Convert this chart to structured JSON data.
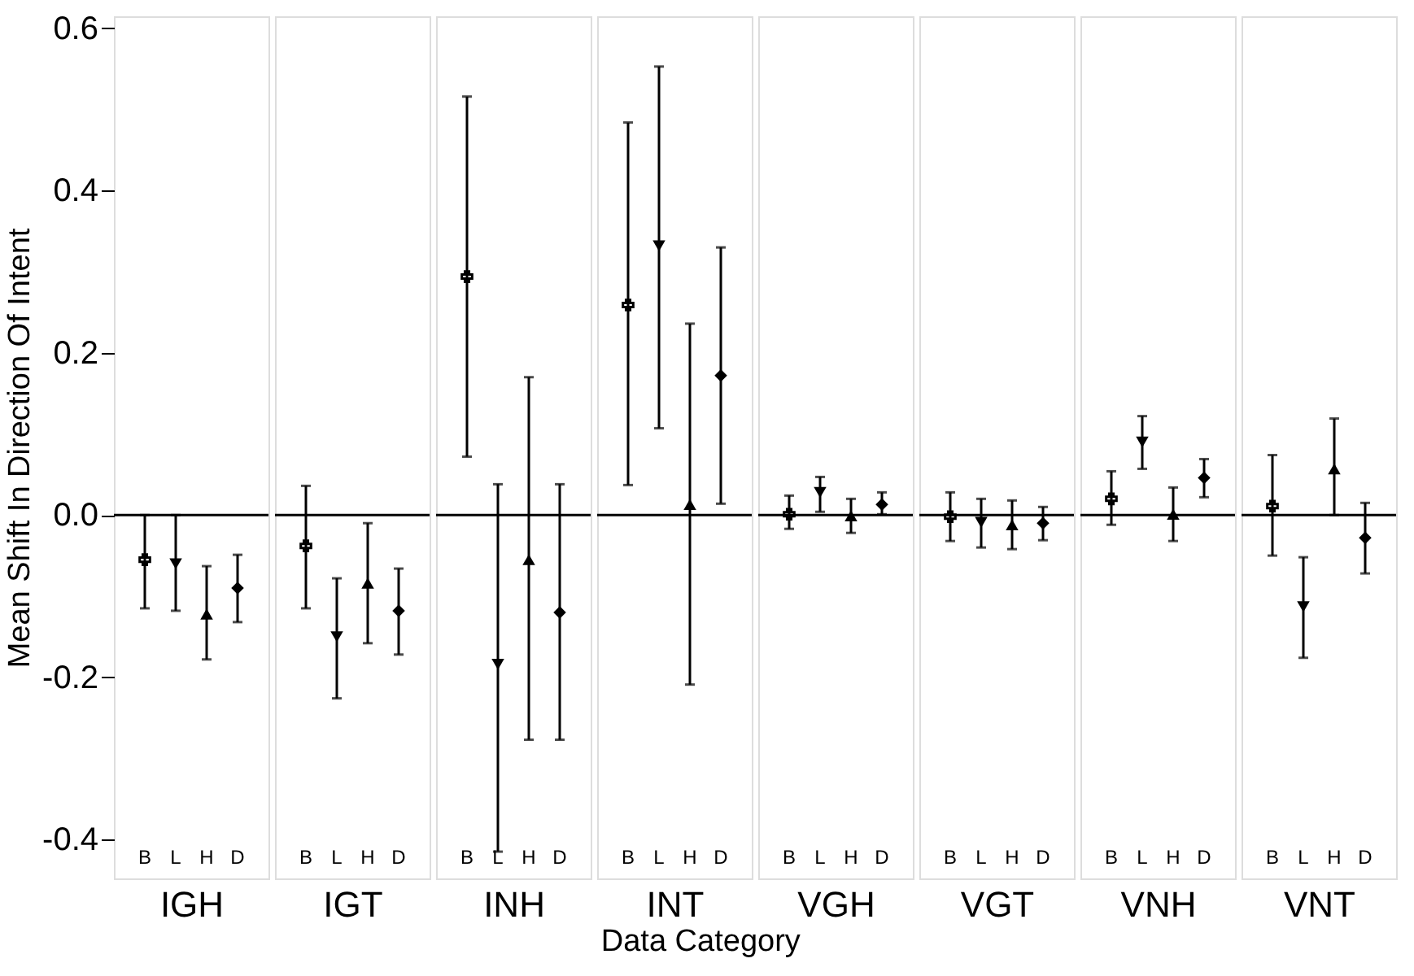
{
  "chart_data": [
    {
      "type": "scatter",
      "xlabel": "IGH",
      "ylabel": "Mean Shift In Direction Of Intent",
      "annotations": [
        "Data Category"
      ],
      "categories": [
        "B",
        "L",
        "H",
        "D"
      ],
      "ylim": [
        -0.448,
        0.615
      ],
      "yticks": [
        {
          "value": -0.4,
          "label": "-0.4"
        },
        {
          "value": -0.2,
          "label": "-0.2"
        },
        {
          "value": 0,
          "label": "0.0"
        },
        {
          "value": 0.2,
          "label": "0.2"
        },
        {
          "value": 0.4,
          "label": "0.4"
        },
        {
          "value": 0.6,
          "label": "0.6"
        }
      ],
      "ref_lines": [
        {
          "axis": "y",
          "value": 0
        }
      ],
      "series": [
        {
          "color": "#000000",
          "marker": "cross",
          "values": [
            -0.055,
            null,
            null,
            null
          ],
          "errors": [
            [
              -0.115,
              0.0
            ],
            null,
            null,
            null
          ]
        },
        {
          "color": "#000000",
          "marker": "triangle-down",
          "values": [
            null,
            -0.06,
            null,
            null
          ],
          "errors": [
            null,
            [
              -0.118,
              0.0
            ],
            null,
            null
          ]
        },
        {
          "color": "#000000",
          "marker": "triangle",
          "values": [
            null,
            null,
            -0.122,
            null
          ],
          "errors": [
            null,
            null,
            [
              -0.178,
              -0.063
            ],
            null
          ]
        },
        {
          "color": "#000000",
          "marker": "diamond",
          "values": [
            null,
            null,
            null,
            -0.09
          ],
          "errors": [
            null,
            null,
            null,
            [
              -0.132,
              -0.049
            ]
          ]
        }
      ]
    },
    {
      "type": "scatter",
      "xlabel": "IGT",
      "categories": [
        "B",
        "L",
        "H",
        "D"
      ],
      "ylim": [
        -0.448,
        0.615
      ],
      "tick_labels": "x",
      "ref_lines": [
        {
          "axis": "y",
          "value": 0
        }
      ],
      "series": [
        {
          "color": "#000000",
          "marker": "cross",
          "values": [
            -0.038,
            null,
            null,
            null
          ],
          "errors": [
            [
              -0.115,
              0.036
            ],
            null,
            null,
            null
          ]
        },
        {
          "color": "#000000",
          "marker": "triangle-down",
          "values": [
            null,
            -0.15,
            null,
            null
          ],
          "errors": [
            null,
            [
              -0.226,
              -0.078
            ],
            null,
            null
          ]
        },
        {
          "color": "#000000",
          "marker": "triangle",
          "values": [
            null,
            null,
            -0.084,
            null
          ],
          "errors": [
            null,
            null,
            [
              -0.158,
              -0.01
            ],
            null
          ]
        },
        {
          "color": "#000000",
          "marker": "diamond",
          "values": [
            null,
            null,
            null,
            -0.118
          ],
          "errors": [
            null,
            null,
            null,
            [
              -0.172,
              -0.066
            ]
          ]
        }
      ]
    },
    {
      "type": "scatter",
      "xlabel": "INH",
      "categories": [
        "B",
        "L",
        "H",
        "D"
      ],
      "ylim": [
        -0.448,
        0.615
      ],
      "tick_labels": "x",
      "ref_lines": [
        {
          "axis": "y",
          "value": 0
        }
      ],
      "series": [
        {
          "color": "#000000",
          "marker": "cross",
          "values": [
            0.294,
            null,
            null,
            null
          ],
          "errors": [
            [
              0.072,
              0.516
            ],
            null,
            null,
            null
          ]
        },
        {
          "color": "#000000",
          "marker": "triangle-down",
          "values": [
            null,
            -0.184,
            null,
            null
          ],
          "errors": [
            null,
            [
              -0.415,
              0.038
            ],
            null,
            null
          ]
        },
        {
          "color": "#000000",
          "marker": "triangle",
          "values": [
            null,
            null,
            -0.055,
            null
          ],
          "errors": [
            null,
            null,
            [
              -0.277,
              0.17
            ],
            null
          ]
        },
        {
          "color": "#000000",
          "marker": "diamond",
          "values": [
            null,
            null,
            null,
            -0.12
          ],
          "errors": [
            null,
            null,
            null,
            [
              -0.277,
              0.038
            ]
          ]
        }
      ]
    },
    {
      "type": "scatter",
      "xlabel": "INT",
      "categories": [
        "B",
        "L",
        "H",
        "D"
      ],
      "ylim": [
        -0.448,
        0.615
      ],
      "tick_labels": "x",
      "ref_lines": [
        {
          "axis": "y",
          "value": 0
        }
      ],
      "series": [
        {
          "color": "#000000",
          "marker": "cross",
          "values": [
            0.259,
            null,
            null,
            null
          ],
          "errors": [
            [
              0.037,
              0.484
            ],
            null,
            null,
            null
          ]
        },
        {
          "color": "#000000",
          "marker": "triangle-down",
          "values": [
            null,
            0.332,
            null,
            null
          ],
          "errors": [
            null,
            [
              0.107,
              0.553
            ],
            null,
            null
          ]
        },
        {
          "color": "#000000",
          "marker": "triangle",
          "values": [
            null,
            null,
            0.013,
            null
          ],
          "errors": [
            null,
            null,
            [
              -0.209,
              0.236
            ],
            null
          ]
        },
        {
          "color": "#000000",
          "marker": "diamond",
          "values": [
            null,
            null,
            null,
            0.172
          ],
          "errors": [
            null,
            null,
            null,
            [
              0.014,
              0.33
            ]
          ]
        }
      ]
    },
    {
      "type": "scatter",
      "xlabel": "VGH",
      "categories": [
        "B",
        "L",
        "H",
        "D"
      ],
      "ylim": [
        -0.448,
        0.615
      ],
      "tick_labels": "x",
      "ref_lines": [
        {
          "axis": "y",
          "value": 0
        }
      ],
      "series": [
        {
          "color": "#000000",
          "marker": "cross",
          "values": [
            0.001,
            null,
            null,
            null
          ],
          "errors": [
            [
              -0.017,
              0.024
            ],
            null,
            null,
            null
          ]
        },
        {
          "color": "#000000",
          "marker": "triangle-down",
          "values": [
            null,
            0.028,
            null,
            null
          ],
          "errors": [
            null,
            [
              0.004,
              0.047
            ],
            null,
            null
          ]
        },
        {
          "color": "#000000",
          "marker": "triangle",
          "values": [
            null,
            null,
            -0.001,
            null
          ],
          "errors": [
            null,
            null,
            [
              -0.022,
              0.02
            ],
            null
          ]
        },
        {
          "color": "#000000",
          "marker": "diamond",
          "values": [
            null,
            null,
            null,
            0.013
          ],
          "errors": [
            null,
            null,
            null,
            [
              0.001,
              0.028
            ]
          ]
        }
      ]
    },
    {
      "type": "scatter",
      "xlabel": "VGT",
      "categories": [
        "B",
        "L",
        "H",
        "D"
      ],
      "ylim": [
        -0.448,
        0.615
      ],
      "tick_labels": "x",
      "ref_lines": [
        {
          "axis": "y",
          "value": 0
        }
      ],
      "series": [
        {
          "color": "#000000",
          "marker": "cross",
          "values": [
            -0.002,
            null,
            null,
            null
          ],
          "errors": [
            [
              -0.032,
              0.028
            ],
            null,
            null,
            null
          ]
        },
        {
          "color": "#000000",
          "marker": "triangle-down",
          "values": [
            null,
            -0.009,
            null,
            null
          ],
          "errors": [
            null,
            [
              -0.04,
              0.02
            ],
            null,
            null
          ]
        },
        {
          "color": "#000000",
          "marker": "triangle",
          "values": [
            null,
            null,
            -0.012,
            null
          ],
          "errors": [
            null,
            null,
            [
              -0.042,
              0.018
            ],
            null
          ]
        },
        {
          "color": "#000000",
          "marker": "diamond",
          "values": [
            null,
            null,
            null,
            -0.01
          ],
          "errors": [
            null,
            null,
            null,
            [
              -0.031,
              0.01
            ]
          ]
        }
      ]
    },
    {
      "type": "scatter",
      "xlabel": "VNH",
      "categories": [
        "B",
        "L",
        "H",
        "D"
      ],
      "ylim": [
        -0.448,
        0.615
      ],
      "tick_labels": "x",
      "ref_lines": [
        {
          "axis": "y",
          "value": 0
        }
      ],
      "series": [
        {
          "color": "#000000",
          "marker": "cross",
          "values": [
            0.02,
            null,
            null,
            null
          ],
          "errors": [
            [
              -0.012,
              0.054
            ],
            null,
            null,
            null
          ]
        },
        {
          "color": "#000000",
          "marker": "triangle-down",
          "values": [
            null,
            0.09,
            null,
            null
          ],
          "errors": [
            null,
            [
              0.057,
              0.122
            ],
            null,
            null
          ]
        },
        {
          "color": "#000000",
          "marker": "triangle",
          "values": [
            null,
            null,
            0.001,
            null
          ],
          "errors": [
            null,
            null,
            [
              -0.032,
              0.034
            ],
            null
          ]
        },
        {
          "color": "#000000",
          "marker": "diamond",
          "values": [
            null,
            null,
            null,
            0.046
          ],
          "errors": [
            null,
            null,
            null,
            [
              0.022,
              0.069
            ]
          ]
        }
      ]
    },
    {
      "type": "scatter",
      "xlabel": "VNT",
      "categories": [
        "B",
        "L",
        "H",
        "D"
      ],
      "ylim": [
        -0.448,
        0.615
      ],
      "tick_labels": "x",
      "ref_lines": [
        {
          "axis": "y",
          "value": 0
        }
      ],
      "series": [
        {
          "color": "#000000",
          "marker": "cross",
          "values": [
            0.011,
            null,
            null,
            null
          ],
          "errors": [
            [
              -0.05,
              0.074
            ],
            null,
            null,
            null
          ]
        },
        {
          "color": "#000000",
          "marker": "triangle-down",
          "values": [
            null,
            -0.113,
            null,
            null
          ],
          "errors": [
            null,
            [
              -0.176,
              -0.052
            ],
            null,
            null
          ]
        },
        {
          "color": "#000000",
          "marker": "triangle",
          "values": [
            null,
            null,
            0.057,
            null
          ],
          "errors": [
            null,
            null,
            [
              0.0,
              0.119
            ],
            null
          ]
        },
        {
          "color": "#000000",
          "marker": "diamond",
          "values": [
            null,
            null,
            null,
            -0.028
          ],
          "errors": [
            null,
            null,
            null,
            [
              -0.072,
              0.015
            ]
          ]
        }
      ]
    }
  ]
}
